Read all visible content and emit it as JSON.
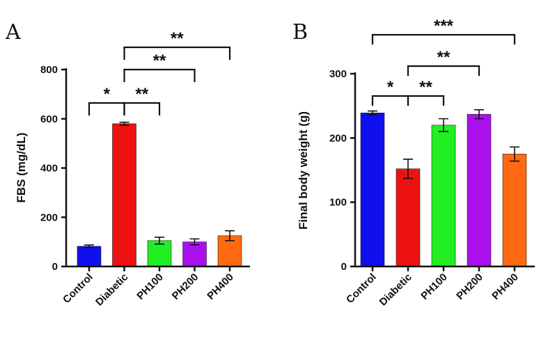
{
  "chart_data": [
    {
      "panel": "A",
      "type": "bar",
      "categories": [
        "Control",
        "Diabetic",
        "PH100",
        "PH200",
        "PH400"
      ],
      "values": [
        82,
        580,
        105,
        100,
        125
      ],
      "errors": [
        5,
        6,
        14,
        12,
        20
      ],
      "colors": [
        "#1010ee",
        "#ee1111",
        "#22ee22",
        "#aa10ee",
        "#ff6a10"
      ],
      "ylabel": "FBS (mg/dL)",
      "ylim": [
        0,
        800
      ],
      "yticks": [
        0,
        200,
        400,
        600,
        800
      ],
      "significance": [
        {
          "from": 0,
          "to": 1,
          "label": "*"
        },
        {
          "from": 1,
          "to": 2,
          "label": "**"
        },
        {
          "from": 1,
          "to": 3,
          "label": "**"
        },
        {
          "from": 1,
          "to": 4,
          "label": "**"
        }
      ]
    },
    {
      "panel": "B",
      "type": "bar",
      "categories": [
        "Control",
        "Diabetic",
        "PH100",
        "PH200",
        "PH400"
      ],
      "values": [
        239,
        152,
        220,
        237,
        175
      ],
      "errors": [
        3,
        15,
        10,
        7,
        11
      ],
      "colors": [
        "#1010ee",
        "#ee1111",
        "#22ee22",
        "#aa10ee",
        "#ff6a10"
      ],
      "ylabel": "Final body weight (g)",
      "ylim": [
        0,
        300
      ],
      "yticks": [
        0,
        100,
        200,
        300
      ],
      "significance": [
        {
          "from": 0,
          "to": 1,
          "label": "*"
        },
        {
          "from": 1,
          "to": 2,
          "label": "**"
        },
        {
          "from": 1,
          "to": 3,
          "label": "**"
        },
        {
          "from": 0,
          "to": 4,
          "label": "***"
        }
      ]
    }
  ]
}
